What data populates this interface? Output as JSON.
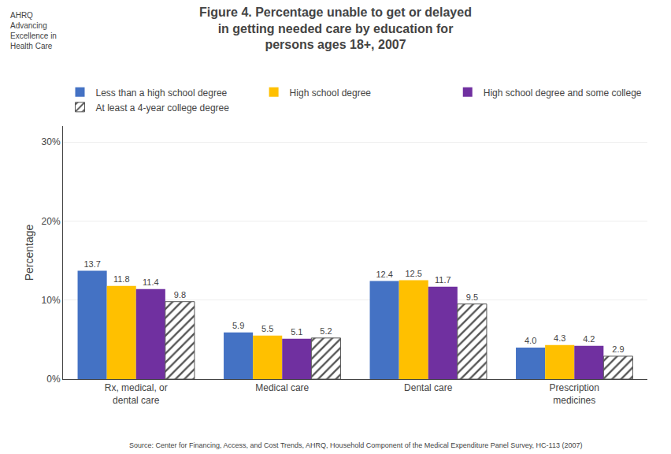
{
  "chart_data": {
    "type": "bar",
    "title": "Figure 4. Percentage unable to get or delayed\nin getting needed care by education for\npersons ages 18+, 2007",
    "categories": [
      "Rx, medical, or\ndental care",
      "Medical care",
      "Dental care",
      "Prescription\nmedicines"
    ],
    "series": [
      {
        "name": "Less than a high school degree",
        "values": [
          13.7,
          5.9,
          12.4,
          4.0
        ],
        "value_labels": [
          "13.7",
          "5.9",
          "12.4",
          "4.0"
        ],
        "color": "#4472C4"
      },
      {
        "name": "High school degree",
        "values": [
          11.8,
          5.5,
          12.5,
          4.3
        ],
        "value_labels": [
          "11.8",
          "5.5",
          "12.5",
          "4.3"
        ],
        "color": "#FFC000"
      },
      {
        "name": "High school degree and some college",
        "values": [
          11.4,
          5.1,
          11.7,
          4.2
        ],
        "value_labels": [
          "11.4",
          "5.1",
          "11.7",
          "4.2"
        ],
        "color": "#7030A0"
      },
      {
        "name": "At least a 4-year college degree",
        "values": [
          9.8,
          5.2,
          9.5,
          2.9
        ],
        "value_labels": [
          "9.8",
          "5.2",
          "9.5",
          "2.9"
        ],
        "color": "#555555",
        "marker": "hatch"
      }
    ],
    "ylabel": "Percentage",
    "ylim": [
      0,
      32
    ],
    "yticks": [
      {
        "value": 0,
        "label": "0%"
      },
      {
        "value": 10,
        "label": "10%"
      },
      {
        "value": 20,
        "label": "20%"
      },
      {
        "value": 30,
        "label": "30%"
      }
    ],
    "grid": true,
    "legend": "top",
    "data_labels": true,
    "annotations": [
      "Source: Center for Financing, Access, and Cost Trends, AHRQ, Household Component of the Medical Expenditure Panel Survey, HC-113 (2007)",
      "AHRQ\nAdvancing\nExcellence in\nHealth Care"
    ]
  }
}
